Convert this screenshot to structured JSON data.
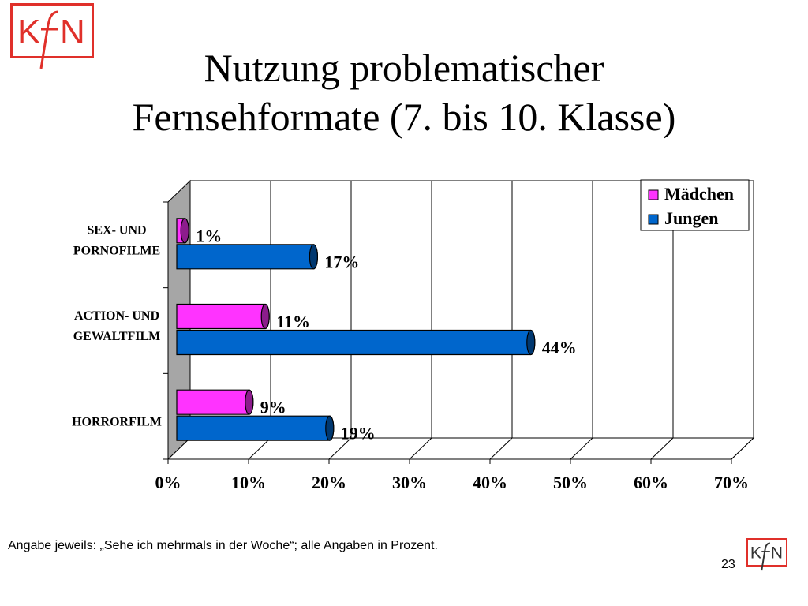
{
  "title": {
    "line1": "Nutzung problematischer",
    "line2": "Fernsehformate (7. bis 10. Klasse)"
  },
  "logo": {
    "text": "KfN",
    "color": "#e0302a"
  },
  "footnote": "Angabe jeweils: „Sehe ich mehrmals in der Woche“; alle Angaben in Prozent.",
  "page_number": "23",
  "chart_data": {
    "type": "bar",
    "orientation": "horizontal",
    "three_d": true,
    "categories": [
      {
        "line1": "SEX- UND",
        "line2": "PORNOFILME"
      },
      {
        "line1": "ACTION- UND",
        "line2": "GEWALTFILM"
      },
      {
        "line1": "",
        "line2": "HORRORFILM"
      }
    ],
    "series": [
      {
        "name": "Mädchen",
        "values": [
          1,
          11,
          9
        ],
        "labels": [
          "1%",
          "11%",
          "9%"
        ],
        "color": "#ff33ff"
      },
      {
        "name": "Jungen",
        "values": [
          17,
          44,
          19
        ],
        "labels": [
          "17%",
          "44%",
          "19%"
        ],
        "color": "#0066cc"
      }
    ],
    "x_ticks": [
      "0%",
      "10%",
      "20%",
      "30%",
      "40%",
      "50%",
      "60%",
      "70%"
    ],
    "xlim": [
      0,
      70
    ],
    "grid": true,
    "legend_position": "top-right"
  }
}
